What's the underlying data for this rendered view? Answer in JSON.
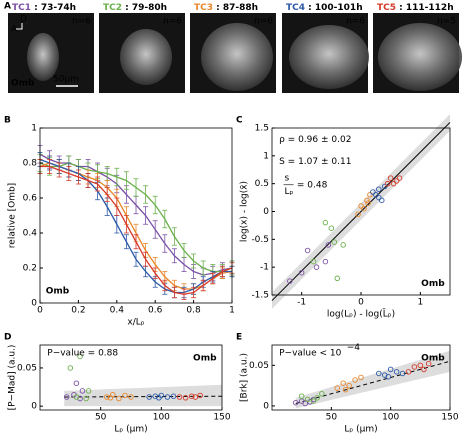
{
  "panel_a": {
    "label": "A",
    "stain": "Omb",
    "scale": "50µm",
    "axis_d": "D",
    "axis_a": "A",
    "tiles": [
      {
        "tc": "TC1",
        "time": " : 73-74h",
        "n": "n=6",
        "color": "#7b52a6"
      },
      {
        "tc": "TC2",
        "time": " : 79-80h",
        "n": "n=6",
        "color": "#6ab04c"
      },
      {
        "tc": "TC3",
        "time": " : 87-88h",
        "n": "n=6",
        "color": "#e8872a"
      },
      {
        "tc": "TC4",
        "time": " : 100-101h",
        "n": "n=6",
        "color": "#2c5aa8"
      },
      {
        "tc": "TC5",
        "time": " : 111-112h",
        "n": "n=5",
        "color": "#d63a2a"
      }
    ]
  },
  "chart_data": [
    {
      "type": "line",
      "panel": "B",
      "x_label": "x/Lₚ",
      "y_label": "relative [Omb]",
      "annotations": [
        "Omb"
      ],
      "xlim": [
        0,
        1
      ],
      "xticks": [
        0,
        0.2,
        0.4,
        0.6,
        0.8,
        1
      ],
      "ylim": [
        0,
        1
      ],
      "yticks": [
        0,
        0.2,
        0.4,
        0.6,
        0.8,
        1
      ],
      "x": [
        0,
        0.05,
        0.1,
        0.15,
        0.2,
        0.25,
        0.3,
        0.35,
        0.4,
        0.45,
        0.5,
        0.55,
        0.6,
        0.65,
        0.7,
        0.75,
        0.8,
        0.85,
        0.9,
        0.95,
        1
      ],
      "series": [
        {
          "color": "#7b52a6",
          "values": [
            0.85,
            0.82,
            0.8,
            0.8,
            0.78,
            0.78,
            0.75,
            0.72,
            0.68,
            0.62,
            0.56,
            0.5,
            0.42,
            0.34,
            0.27,
            0.22,
            0.18,
            0.16,
            0.17,
            0.19,
            0.2
          ],
          "errors": [
            0.05,
            0.05,
            0.04,
            0.04,
            0.04,
            0.04,
            0.05,
            0.05,
            0.05,
            0.05,
            0.05,
            0.05,
            0.05,
            0.05,
            0.04,
            0.04,
            0.04,
            0.04,
            0.04,
            0.04,
            0.04
          ]
        },
        {
          "color": "#6ab04c",
          "values": [
            0.8,
            0.78,
            0.78,
            0.8,
            0.78,
            0.76,
            0.75,
            0.74,
            0.72,
            0.7,
            0.66,
            0.62,
            0.56,
            0.48,
            0.38,
            0.3,
            0.24,
            0.2,
            0.18,
            0.18,
            0.2
          ],
          "errors": [
            0.05,
            0.05,
            0.04,
            0.04,
            0.04,
            0.04,
            0.04,
            0.04,
            0.05,
            0.05,
            0.05,
            0.05,
            0.05,
            0.05,
            0.05,
            0.04,
            0.04,
            0.04,
            0.04,
            0.04,
            0.04
          ]
        },
        {
          "color": "#e8872a",
          "values": [
            0.78,
            0.8,
            0.78,
            0.76,
            0.74,
            0.72,
            0.7,
            0.66,
            0.6,
            0.5,
            0.4,
            0.3,
            0.22,
            0.15,
            0.1,
            0.08,
            0.08,
            0.1,
            0.14,
            0.17,
            0.18
          ],
          "errors": [
            0.04,
            0.04,
            0.04,
            0.04,
            0.04,
            0.04,
            0.04,
            0.04,
            0.05,
            0.05,
            0.05,
            0.04,
            0.04,
            0.03,
            0.03,
            0.03,
            0.03,
            0.03,
            0.03,
            0.03,
            0.03
          ]
        },
        {
          "color": "#2c5aa8",
          "values": [
            0.82,
            0.8,
            0.78,
            0.76,
            0.74,
            0.7,
            0.64,
            0.55,
            0.45,
            0.35,
            0.25,
            0.18,
            0.12,
            0.08,
            0.06,
            0.06,
            0.08,
            0.12,
            0.15,
            0.18,
            0.18
          ],
          "errors": [
            0.04,
            0.04,
            0.04,
            0.04,
            0.04,
            0.04,
            0.05,
            0.05,
            0.05,
            0.04,
            0.04,
            0.03,
            0.03,
            0.03,
            0.03,
            0.03,
            0.03,
            0.03,
            0.03,
            0.03,
            0.03
          ]
        },
        {
          "color": "#d63a2a",
          "values": [
            0.78,
            0.78,
            0.76,
            0.74,
            0.72,
            0.7,
            0.68,
            0.62,
            0.55,
            0.45,
            0.35,
            0.25,
            0.17,
            0.1,
            0.06,
            0.05,
            0.06,
            0.1,
            0.14,
            0.18,
            0.2
          ],
          "errors": [
            0.04,
            0.04,
            0.04,
            0.04,
            0.04,
            0.04,
            0.04,
            0.04,
            0.05,
            0.05,
            0.04,
            0.04,
            0.03,
            0.03,
            0.03,
            0.03,
            0.03,
            0.03,
            0.03,
            0.03,
            0.03
          ]
        }
      ]
    },
    {
      "type": "scatter",
      "panel": "C",
      "x_label": "log(Lₚ) - log(L̄ₚ)",
      "y_label": "log(x) - log(x̄)",
      "annotations": [
        "ρ = 0.96 ± 0.02",
        "S = 1.07 ± 0.11",
        "s",
        "Lₚ",
        "= 0.48",
        "Omb"
      ],
      "xlim": [
        -1.5,
        1.5
      ],
      "xticks": [
        -1,
        0,
        1
      ],
      "ylim": [
        -1.5,
        1.5
      ],
      "yticks": [
        -1.5,
        -1,
        -0.5,
        0,
        0.5,
        1,
        1.5
      ],
      "fit": {
        "x": [
          -1.5,
          1.5
        ],
        "y": [
          -1.6,
          1.6
        ],
        "band_lower": [
          -1.75,
          1.45
        ],
        "band_upper": [
          -1.45,
          1.75
        ],
        "dashed": false
      },
      "series": [
        {
          "color": "#7b52a6",
          "x": [
            -1.2,
            -0.9,
            -0.75,
            -0.6,
            -0.55,
            -1.0
          ],
          "values": [
            -1.25,
            -0.7,
            -1.0,
            -0.9,
            -0.6,
            -1.1
          ]
        },
        {
          "color": "#6ab04c",
          "x": [
            -0.8,
            -0.5,
            -0.45,
            -0.4,
            -0.3,
            -0.6
          ],
          "values": [
            -0.9,
            -0.3,
            -0.55,
            -1.2,
            -0.6,
            -0.2
          ]
        },
        {
          "color": "#e8872a",
          "x": [
            0.0,
            0.1,
            0.05,
            0.15,
            -0.05,
            0.12
          ],
          "values": [
            0.1,
            0.2,
            0.05,
            0.3,
            -0.05,
            0.15
          ]
        },
        {
          "color": "#2c5aa8",
          "x": [
            0.25,
            0.3,
            0.35,
            0.4,
            0.3,
            0.2
          ],
          "values": [
            0.3,
            0.4,
            0.2,
            0.45,
            0.25,
            0.35
          ]
        },
        {
          "color": "#d63a2a",
          "x": [
            0.45,
            0.5,
            0.55,
            0.6,
            0.65
          ],
          "values": [
            0.5,
            0.6,
            0.5,
            0.55,
            0.6
          ]
        }
      ]
    },
    {
      "type": "scatter",
      "panel": "D",
      "x_label": "Lₚ (µm)",
      "y_label": "[P−Mad] (a.u.)",
      "annotations": [
        "P−value = 0.88",
        "Omb"
      ],
      "xlim": [
        0,
        150
      ],
      "xticks": [
        50,
        100,
        150
      ],
      "ylim": [
        -0.005,
        0.08
      ],
      "yticks": [
        0,
        0.05
      ],
      "fit": {
        "x": [
          20,
          150
        ],
        "y": [
          0.012,
          0.013
        ],
        "band_lower": [
          0,
          0
        ],
        "band_upper": [
          0.02,
          0.028
        ],
        "dashed": true
      },
      "series": [
        {
          "color": "#7b52a6",
          "x": [
            22,
            28,
            30,
            35,
            33
          ],
          "values": [
            0.012,
            0.015,
            0.03,
            0.02,
            0.01
          ]
        },
        {
          "color": "#6ab04c",
          "x": [
            25,
            33,
            38,
            40,
            30
          ],
          "values": [
            0.05,
            0.065,
            0.01,
            0.02,
            0.012
          ]
        },
        {
          "color": "#e8872a",
          "x": [
            55,
            60,
            65,
            70,
            75,
            58
          ],
          "values": [
            0.012,
            0.015,
            0.01,
            0.014,
            0.012,
            0.011
          ]
        },
        {
          "color": "#2c5aa8",
          "x": [
            90,
            95,
            100,
            105,
            110,
            98
          ],
          "values": [
            0.012,
            0.013,
            0.014,
            0.012,
            0.013,
            0.011
          ]
        },
        {
          "color": "#d63a2a",
          "x": [
            115,
            120,
            125,
            128,
            132
          ],
          "values": [
            0.012,
            0.011,
            0.013,
            0.012,
            0.014
          ]
        }
      ]
    },
    {
      "type": "scatter",
      "panel": "E",
      "x_label": "Lₚ (µm)",
      "y_label": "[Brk] (a.u.)",
      "annotations": [
        "P−value < 10",
        "−4",
        "Omb"
      ],
      "xlim": [
        0,
        150
      ],
      "xticks": [
        50,
        100,
        150
      ],
      "ylim": [
        -0.005,
        0.075
      ],
      "yticks": [
        0,
        0.05
      ],
      "fit": {
        "x": [
          20,
          150
        ],
        "y": [
          0.003,
          0.055
        ],
        "band_lower": [
          -0.003,
          0.042
        ],
        "band_upper": [
          0.01,
          0.068
        ],
        "dashed": true
      },
      "series": [
        {
          "color": "#7b52a6",
          "x": [
            20,
            25,
            28,
            32,
            35
          ],
          "values": [
            0.004,
            0.006,
            0.003,
            0.005,
            0.008
          ]
        },
        {
          "color": "#6ab04c",
          "x": [
            25,
            30,
            35,
            38,
            42
          ],
          "values": [
            0.012,
            0.008,
            0.006,
            0.01,
            0.015
          ]
        },
        {
          "color": "#e8872a",
          "x": [
            55,
            60,
            65,
            70,
            75,
            62
          ],
          "values": [
            0.022,
            0.028,
            0.025,
            0.032,
            0.035,
            0.02
          ]
        },
        {
          "color": "#2c5aa8",
          "x": [
            90,
            95,
            100,
            105,
            110,
            98
          ],
          "values": [
            0.04,
            0.038,
            0.045,
            0.042,
            0.04,
            0.036
          ]
        },
        {
          "color": "#d63a2a",
          "x": [
            115,
            120,
            125,
            128,
            132
          ],
          "values": [
            0.042,
            0.048,
            0.05,
            0.045,
            0.052
          ]
        }
      ]
    }
  ]
}
